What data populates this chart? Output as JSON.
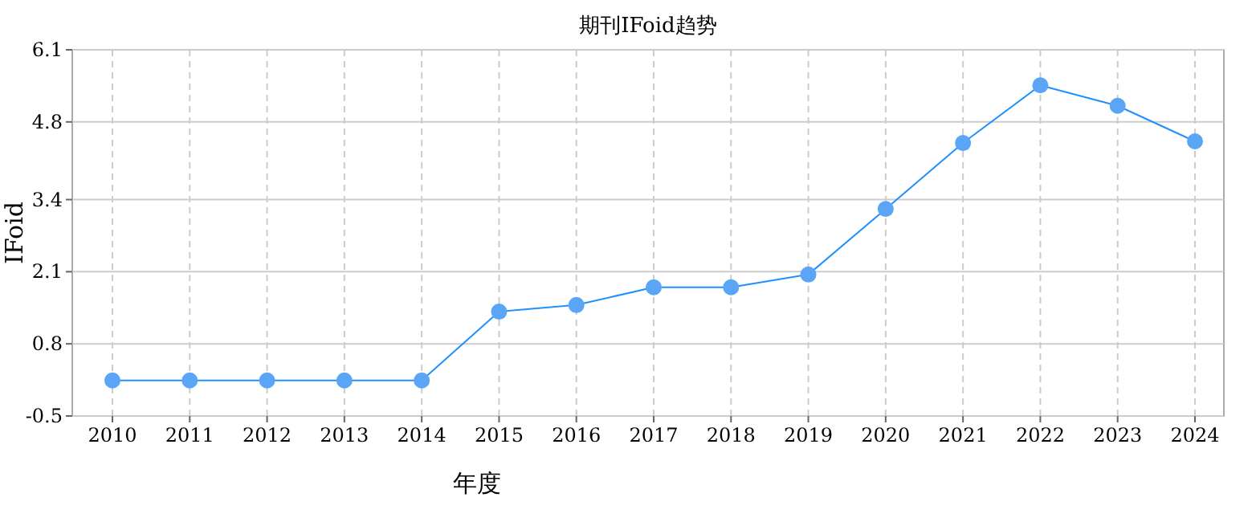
{
  "chart_data": {
    "type": "line",
    "title": "期刊IFoid趋势",
    "xlabel": "年度",
    "ylabel": "IFoid",
    "categories": [
      "2010",
      "2011",
      "2012",
      "2013",
      "2014",
      "2015",
      "2016",
      "2017",
      "2018",
      "2019",
      "2020",
      "2021",
      "2022",
      "2023",
      "2024"
    ],
    "series": [
      {
        "color": "#5aa5f5",
        "values": [
          0.14,
          0.14,
          0.14,
          0.14,
          0.14,
          1.38,
          1.5,
          1.82,
          1.82,
          2.05,
          3.23,
          4.42,
          5.46,
          5.09,
          4.45
        ]
      }
    ],
    "ylim": [
      -0.5,
      6.1
    ],
    "yticks": [
      -0.5,
      0.8,
      2.1,
      3.4,
      4.8,
      6.1
    ],
    "grid": true,
    "marker": "circle",
    "line_style": "solid"
  }
}
